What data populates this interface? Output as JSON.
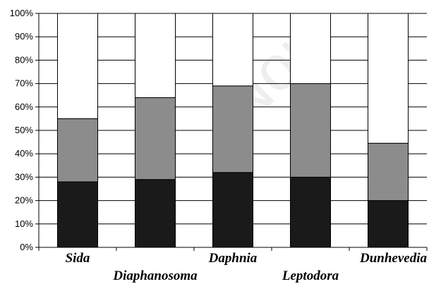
{
  "watermark_text": "Non",
  "chart_data": {
    "type": "bar",
    "stacked": true,
    "categories": [
      "Sida",
      "Diaphanosoma",
      "Daphnia",
      "Leptodora",
      "Dunhevedia"
    ],
    "series": [
      {
        "color": "#1a1a1a",
        "values": [
          28,
          29,
          32,
          30,
          20
        ]
      },
      {
        "color": "#8c8c8c",
        "values": [
          27,
          35,
          37,
          40,
          24.5
        ]
      },
      {
        "color": "#ffffff",
        "values": [
          45,
          36,
          31,
          30,
          55.5
        ]
      }
    ],
    "y_ticks": [
      "0%",
      "10%",
      "20%",
      "30%",
      "40%",
      "50%",
      "60%",
      "70%",
      "80%",
      "90%",
      "100%"
    ],
    "ylim": [
      0,
      100
    ],
    "grid": true,
    "legend": false
  }
}
